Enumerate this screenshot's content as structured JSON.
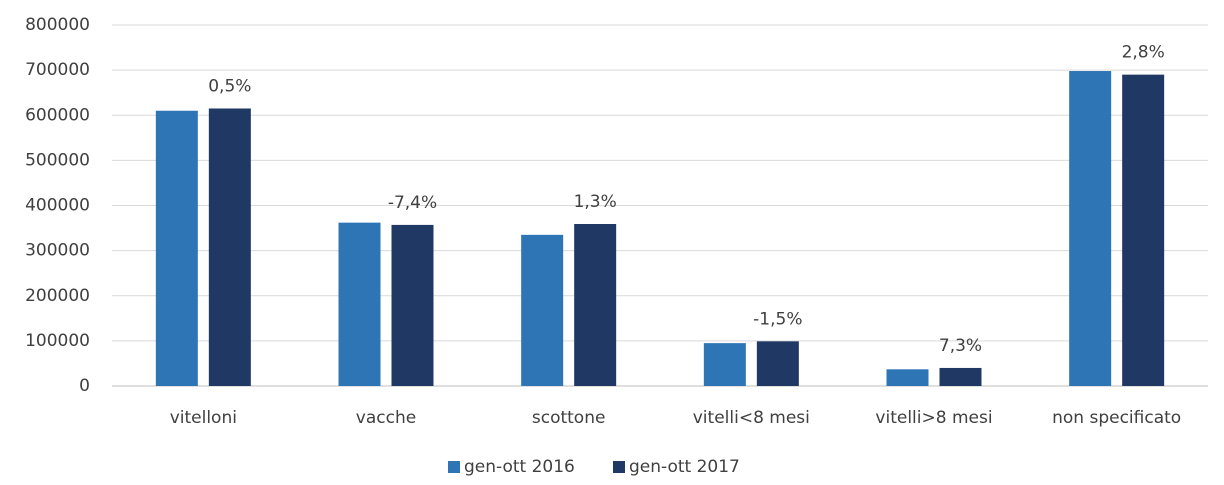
{
  "chart_data": {
    "type": "bar",
    "categories": [
      "vitelloni",
      "vacche",
      "scottone",
      "vitelli<8 mesi",
      "vitelli>8 mesi",
      "non specificato"
    ],
    "series": [
      {
        "name": "gen-ott 2016",
        "color": "#2e75b6",
        "values": [
          610000,
          362000,
          335000,
          95000,
          37000,
          698000
        ]
      },
      {
        "name": "gen-ott 2017",
        "color": "#203864",
        "values": [
          615000,
          357000,
          359000,
          99000,
          40000,
          690000
        ]
      }
    ],
    "annotations": [
      "0,5%",
      "-7,4%",
      "1,3%",
      "-1,5%",
      "7,3%",
      "2,8%"
    ],
    "ylim": [
      0,
      800000
    ],
    "yticks": [
      0,
      100000,
      200000,
      300000,
      400000,
      500000,
      600000,
      700000,
      800000
    ],
    "grid": true,
    "legend": "bottom"
  }
}
